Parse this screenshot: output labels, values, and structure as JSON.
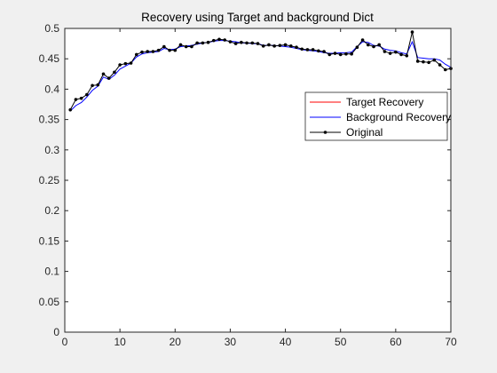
{
  "chart_data": {
    "type": "line",
    "title": "Recovery using Target and background Dict",
    "xlabel": "",
    "ylabel": "",
    "xlim": [
      0,
      70
    ],
    "ylim": [
      0,
      0.5
    ],
    "xticks": [
      0,
      10,
      20,
      30,
      40,
      50,
      60,
      70
    ],
    "yticks": [
      0,
      0.05,
      0.1,
      0.15,
      0.2,
      0.25,
      0.3,
      0.35,
      0.4,
      0.45,
      0.5
    ],
    "grid": false,
    "legend_position": "right",
    "x": [
      1,
      2,
      3,
      4,
      5,
      6,
      7,
      8,
      9,
      10,
      11,
      12,
      13,
      14,
      15,
      16,
      17,
      18,
      19,
      20,
      21,
      22,
      23,
      24,
      25,
      26,
      27,
      28,
      29,
      30,
      31,
      32,
      33,
      34,
      35,
      36,
      37,
      38,
      39,
      40,
      41,
      42,
      43,
      44,
      45,
      46,
      47,
      48,
      49,
      50,
      51,
      52,
      53,
      54,
      55,
      56,
      57,
      58,
      59,
      60,
      61,
      62,
      63,
      64,
      65,
      66,
      67,
      68,
      69,
      70
    ],
    "series": [
      {
        "name": "Target Recovery",
        "color": "#ff0000",
        "marker": "none",
        "values": [
          0,
          0,
          0,
          0,
          0,
          0,
          0,
          0,
          0,
          0,
          0,
          0,
          0,
          0,
          0,
          0,
          0,
          0,
          0,
          0,
          0,
          0,
          0,
          0,
          0,
          0,
          0,
          0,
          0,
          0,
          0,
          0,
          0,
          0,
          0,
          0,
          0,
          0,
          0,
          0,
          0,
          0,
          0,
          0,
          0,
          0,
          0,
          0,
          0,
          0,
          0,
          0,
          0,
          0,
          0,
          0,
          0,
          0,
          0,
          0,
          0,
          0,
          0,
          0,
          0,
          0,
          0,
          0,
          0,
          0
        ]
      },
      {
        "name": "Background Recovery",
        "color": "#0000ff",
        "marker": "none",
        "values": [
          0.364,
          0.373,
          0.378,
          0.387,
          0.398,
          0.405,
          0.42,
          0.416,
          0.423,
          0.433,
          0.438,
          0.443,
          0.453,
          0.458,
          0.46,
          0.461,
          0.462,
          0.467,
          0.465,
          0.466,
          0.47,
          0.471,
          0.472,
          0.474,
          0.476,
          0.477,
          0.479,
          0.48,
          0.48,
          0.479,
          0.478,
          0.476,
          0.476,
          0.475,
          0.475,
          0.472,
          0.472,
          0.472,
          0.471,
          0.47,
          0.469,
          0.467,
          0.465,
          0.464,
          0.463,
          0.462,
          0.46,
          0.459,
          0.459,
          0.46,
          0.46,
          0.461,
          0.47,
          0.478,
          0.477,
          0.472,
          0.471,
          0.466,
          0.464,
          0.463,
          0.46,
          0.458,
          0.478,
          0.452,
          0.451,
          0.45,
          0.45,
          0.448,
          0.441,
          0.436
        ]
      },
      {
        "name": "Original",
        "color": "#000000",
        "marker": "dot",
        "values": [
          0.366,
          0.383,
          0.385,
          0.391,
          0.406,
          0.407,
          0.425,
          0.418,
          0.428,
          0.44,
          0.442,
          0.443,
          0.457,
          0.461,
          0.462,
          0.462,
          0.464,
          0.47,
          0.464,
          0.464,
          0.473,
          0.47,
          0.47,
          0.476,
          0.476,
          0.477,
          0.48,
          0.482,
          0.481,
          0.478,
          0.475,
          0.477,
          0.476,
          0.476,
          0.475,
          0.471,
          0.473,
          0.471,
          0.472,
          0.473,
          0.471,
          0.469,
          0.466,
          0.465,
          0.465,
          0.463,
          0.462,
          0.457,
          0.459,
          0.457,
          0.458,
          0.458,
          0.469,
          0.481,
          0.473,
          0.47,
          0.473,
          0.462,
          0.459,
          0.461,
          0.457,
          0.455,
          0.494,
          0.446,
          0.445,
          0.444,
          0.448,
          0.44,
          0.432,
          0.434
        ]
      }
    ]
  }
}
